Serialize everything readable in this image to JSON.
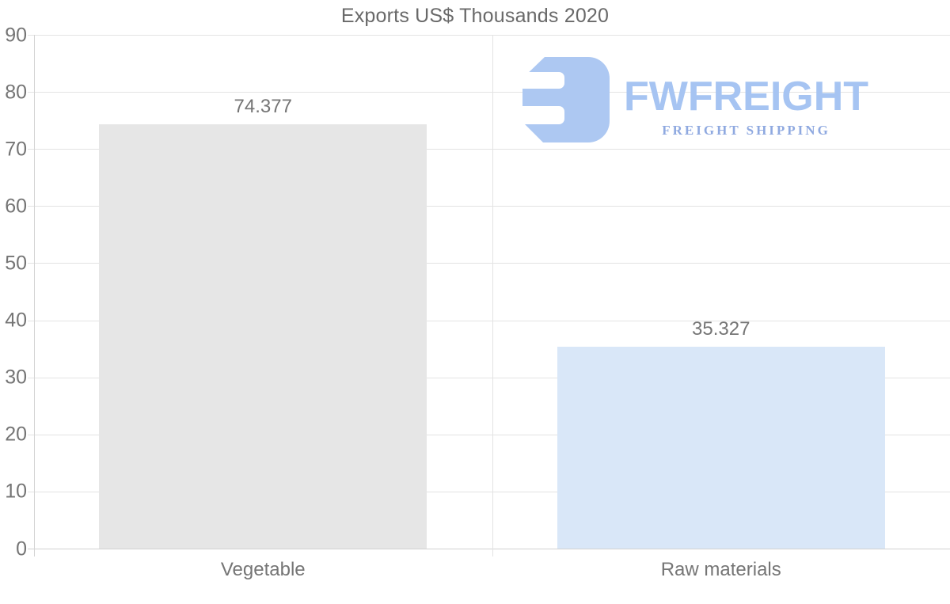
{
  "chart_data": {
    "type": "bar",
    "title": "Exports US$ Thousands 2020",
    "categories": [
      "Vegetable",
      "Raw materials"
    ],
    "values": [
      74.377,
      35.327
    ],
    "value_labels": [
      "74.377",
      "35.327"
    ],
    "bar_colors": [
      "#e6e6e6",
      "#d9e7f8"
    ],
    "xlabel": "",
    "ylabel": "",
    "ylim": [
      0,
      90
    ],
    "yticks": [
      0,
      10,
      20,
      30,
      40,
      50,
      60,
      70,
      80,
      90
    ],
    "grid": true,
    "legend": "none",
    "text_color": "#757575",
    "gridline_color": "#e3e3e3",
    "axis_color": "#d4d4d4"
  },
  "logo": {
    "name": "FWFREIGHT",
    "tagline": "FREIGHT SHIPPING",
    "mark_color": "#adc8f2",
    "name_color": "#a6c4f2",
    "tagline_color": "#8fa9e0"
  }
}
